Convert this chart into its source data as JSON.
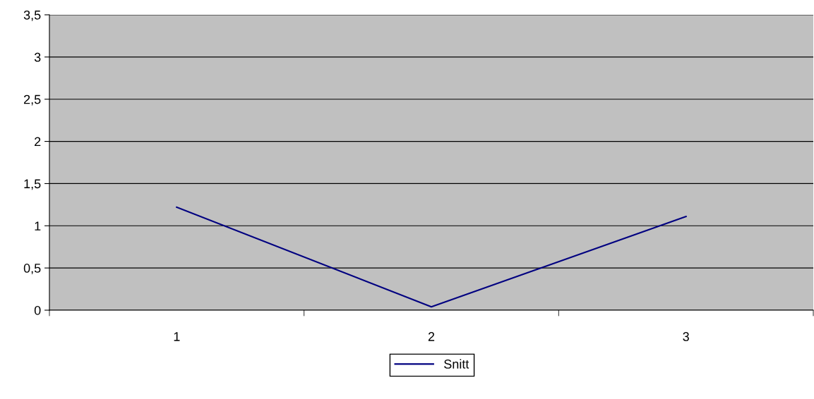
{
  "chart_data": {
    "type": "line",
    "categories": [
      "1",
      "2",
      "3"
    ],
    "series": [
      {
        "name": "Snitt",
        "color": "#000080",
        "values": [
          1.22,
          0.04,
          1.11
        ]
      }
    ],
    "ylim": [
      0,
      3.5
    ],
    "yticks": [
      0,
      {
        "value": 0.5,
        "label": "0,5"
      },
      1,
      {
        "value": 1.5,
        "label": "1,5"
      },
      2,
      {
        "value": 2.5,
        "label": "2,5"
      },
      3,
      {
        "value": 3.5,
        "label": "3,5"
      }
    ],
    "grid": "y",
    "legend": "bottom",
    "marker": "none",
    "line_style": "solid"
  }
}
